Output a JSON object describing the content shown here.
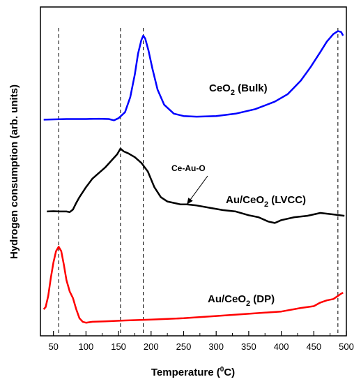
{
  "chart_data": {
    "type": "line",
    "xlabel": "Temperature (0C)",
    "xlabel_parts": {
      "prefix": "Temperature (",
      "sup": "0",
      "suffix": "C)"
    },
    "ylabel": "Hydrogen consumption (arb. units)",
    "xlim": [
      30,
      500
    ],
    "xticks": [
      50,
      100,
      150,
      200,
      250,
      300,
      350,
      400,
      450,
      500
    ],
    "grid": false,
    "legend": "none",
    "reference_lines_x": [
      58,
      153,
      188,
      487
    ],
    "series": [
      {
        "name": "CeO2 (Bulk)",
        "label_parts": {
          "main": "CeO",
          "sub": "2",
          "suffix": " (Bulk)"
        },
        "color": "#0000ff",
        "x": [
          35,
          50,
          70,
          90,
          100,
          120,
          135,
          143,
          150,
          160,
          168,
          175,
          180,
          185,
          188,
          191,
          196,
          202,
          210,
          220,
          235,
          250,
          270,
          300,
          330,
          360,
          390,
          410,
          430,
          445,
          460,
          470,
          480,
          487,
          492,
          495
        ],
        "y": [
          0.2,
          0.21,
          0.22,
          0.22,
          0.22,
          0.23,
          0.22,
          0.18,
          0.25,
          0.45,
          0.95,
          1.7,
          2.4,
          2.85,
          3.0,
          2.9,
          2.5,
          1.9,
          1.2,
          0.7,
          0.4,
          0.32,
          0.3,
          0.32,
          0.4,
          0.55,
          0.8,
          1.05,
          1.5,
          1.95,
          2.45,
          2.8,
          3.05,
          3.15,
          3.12,
          3.0
        ]
      },
      {
        "name": "Au/CeO2 (LVCC)",
        "label_parts": {
          "main": "Au/CeO",
          "sub": "2",
          "suffix": " (LVCC)"
        },
        "annotation": "Ce-Au-O",
        "annotation_point": [
          255,
          0.3
        ],
        "color": "#000000",
        "x": [
          40,
          50,
          60,
          70,
          75,
          80,
          85,
          90,
          100,
          110,
          120,
          130,
          140,
          148,
          153,
          158,
          165,
          175,
          185,
          195,
          205,
          215,
          225,
          235,
          245,
          255,
          270,
          290,
          310,
          330,
          350,
          365,
          380,
          390,
          400,
          420,
          440,
          460,
          480,
          497
        ],
        "y": [
          0.05,
          0.06,
          0.05,
          0.05,
          0.03,
          0.12,
          0.35,
          0.55,
          0.9,
          1.2,
          1.4,
          1.6,
          1.85,
          2.05,
          2.25,
          2.15,
          2.08,
          1.95,
          1.75,
          1.45,
          0.9,
          0.55,
          0.4,
          0.35,
          0.3,
          0.3,
          0.26,
          0.18,
          0.1,
          0.05,
          -0.08,
          -0.15,
          -0.3,
          -0.35,
          -0.25,
          -0.15,
          -0.1,
          0.0,
          -0.05,
          -0.1
        ]
      },
      {
        "name": "Au/CeO2 (DP)",
        "label_parts": {
          "main": "Au/CeO",
          "sub": "2",
          "suffix": " (DP)"
        },
        "color": "#ff0000",
        "x": [
          35,
          38,
          42,
          46,
          50,
          54,
          58,
          62,
          66,
          70,
          75,
          80,
          85,
          90,
          95,
          100,
          110,
          130,
          160,
          200,
          250,
          300,
          350,
          400,
          430,
          450,
          460,
          470,
          480,
          487,
          492,
          495
        ],
        "y": [
          0.25,
          0.3,
          0.55,
          0.95,
          1.3,
          1.55,
          1.65,
          1.55,
          1.25,
          0.9,
          0.65,
          0.5,
          0.25,
          0.05,
          -0.03,
          -0.05,
          -0.03,
          -0.02,
          0.0,
          0.02,
          0.05,
          0.1,
          0.15,
          0.2,
          0.28,
          0.32,
          0.4,
          0.45,
          0.48,
          0.55,
          0.6,
          0.62
        ]
      }
    ]
  }
}
